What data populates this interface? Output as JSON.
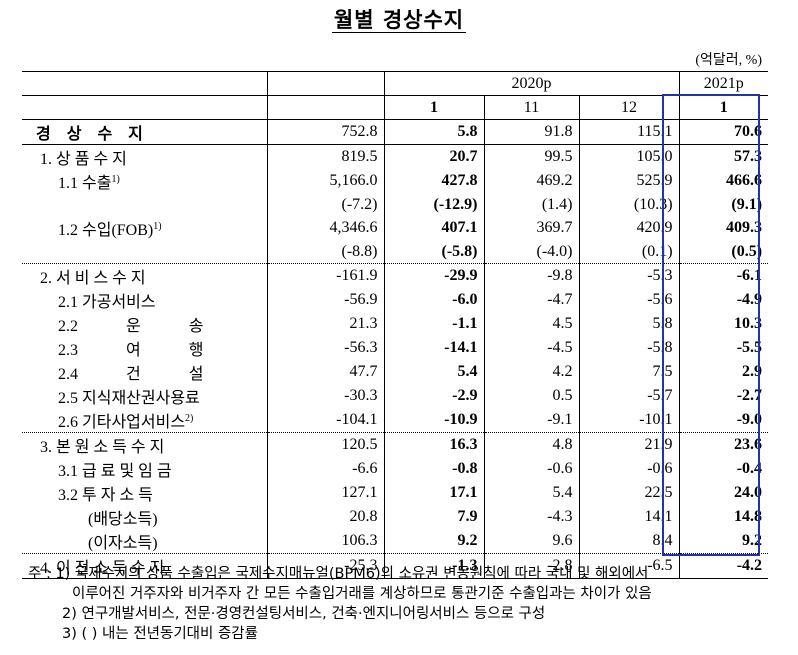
{
  "title": "월별 경상수지",
  "unit": "(억달러, %)",
  "header": {
    "year_2020": "2020p",
    "year_2021": "2021p",
    "months": [
      "1",
      "11",
      "12",
      "1"
    ]
  },
  "rows": [
    {
      "label": "경 상 수 지",
      "v": [
        "752.8",
        "5.8",
        "91.8",
        "115.1",
        "70.6"
      ]
    },
    {
      "label": "1. 상 품 수 지",
      "v": [
        "819.5",
        "20.7",
        "99.5",
        "105.0",
        "57.3"
      ]
    },
    {
      "label": "1.1 수출",
      "sup": "1)",
      "v": [
        "5,166.0",
        "427.8",
        "469.2",
        "525.9",
        "466.6"
      ]
    },
    {
      "label": "",
      "v": [
        "(-7.2)",
        "(-12.9)",
        "(1.4)",
        "(10.3)",
        "(9.1)"
      ]
    },
    {
      "label": "1.2 수입(FOB)",
      "sup": "1)",
      "v": [
        "4,346.6",
        "407.1",
        "369.7",
        "420.9",
        "409.3"
      ]
    },
    {
      "label": "",
      "v": [
        "(-8.8)",
        "(-5.8)",
        "(-4.0)",
        "(0.1)",
        "(0.5)"
      ]
    },
    {
      "label": "2. 서 비 스 수 지",
      "v": [
        "-161.9",
        "-29.9",
        "-9.8",
        "-5.3",
        "-6.1"
      ]
    },
    {
      "label": "2.1 가공서비스",
      "v": [
        "-56.9",
        "-6.0",
        "-4.7",
        "-5.6",
        "-4.9"
      ]
    },
    {
      "label": "2.2 운 송",
      "v": [
        "21.3",
        "-1.1",
        "4.5",
        "5.8",
        "10.3"
      ]
    },
    {
      "label": "2.3 여 행",
      "v": [
        "-56.3",
        "-14.1",
        "-4.5",
        "-5.8",
        "-5.5"
      ]
    },
    {
      "label": "2.4 건 설",
      "v": [
        "47.7",
        "5.4",
        "4.2",
        "7.5",
        "2.9"
      ]
    },
    {
      "label": "2.5 지식재산권사용료",
      "v": [
        "-30.3",
        "-2.9",
        "0.5",
        "-5.7",
        "-2.7"
      ]
    },
    {
      "label": "2.6 기타사업서비스",
      "sup": "2)",
      "v": [
        "-104.1",
        "-10.9",
        "-9.1",
        "-10.1",
        "-9.0"
      ]
    },
    {
      "label": "3. 본 원 소 득 수 지",
      "v": [
        "120.5",
        "16.3",
        "4.8",
        "21.9",
        "23.6"
      ]
    },
    {
      "label": "3.1 급 료 및 임 금",
      "v": [
        "-6.6",
        "-0.8",
        "-0.6",
        "-0.6",
        "-0.4"
      ]
    },
    {
      "label": "3.2 투 자 소 득",
      "v": [
        "127.1",
        "17.1",
        "5.4",
        "22.5",
        "24.0"
      ]
    },
    {
      "label": "(배당소득)",
      "v": [
        "20.8",
        "7.9",
        "-4.3",
        "14.1",
        "14.8"
      ]
    },
    {
      "label": "(이자소득)",
      "v": [
        "106.3",
        "9.2",
        "9.6",
        "8.4",
        "9.2"
      ]
    },
    {
      "label": "4. 이 전 소 득 수 지",
      "v": [
        "-25.3",
        "-1.3",
        "-2.8",
        "-6.5",
        "-4.2"
      ]
    }
  ],
  "notes": {
    "n1a": "주 : 1) 국제수지의 상품 수출입은 국제수지매뉴얼(BPM6)의 소유권 변동원칙에 따라 국내 및 해외에서",
    "n1b": "이루어진 거주자와 비거주자 간 모든 수출입거래를 계상하므로 통관기준 수출입과는 차이가 있음",
    "n2": "2) 연구개발서비스, 전문·경영컨설팅서비스, 건축·엔지니어링서비스 등으로 구성",
    "n3": "3) ( ) 내는 전년동기대비 증감률"
  }
}
